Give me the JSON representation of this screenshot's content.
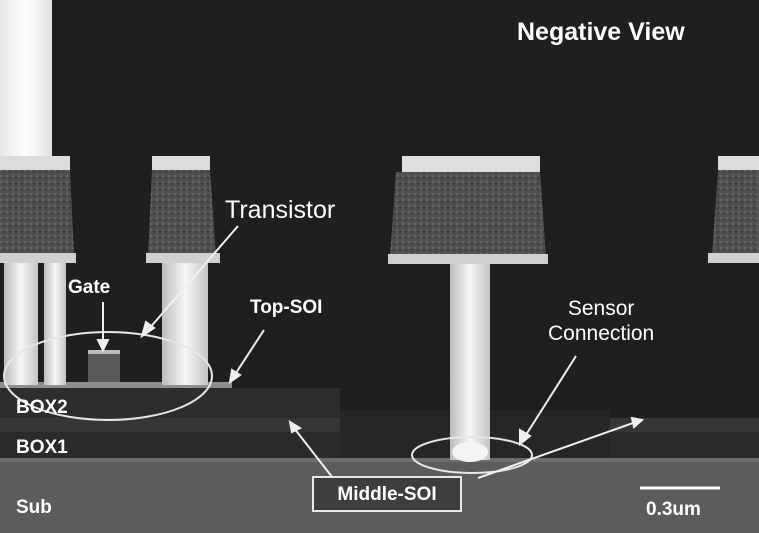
{
  "title": "Negative View",
  "labels": {
    "transistor": "Transistor",
    "gate": "Gate",
    "top_soi": "Top-SOI",
    "sensor_line1": "Sensor",
    "sensor_line2": "Connection",
    "box2": "BOX2",
    "box1": "BOX1",
    "sub": "Sub",
    "middle_soi": "Middle-SOI",
    "scale_bar": "0.3um"
  },
  "colors": {
    "background": "#1f1f1f",
    "label_text": "#ffffff",
    "metal_bright": "#f2f2f2",
    "via_gray": "#5a5a5a",
    "substrate": "#5c5c5c"
  }
}
